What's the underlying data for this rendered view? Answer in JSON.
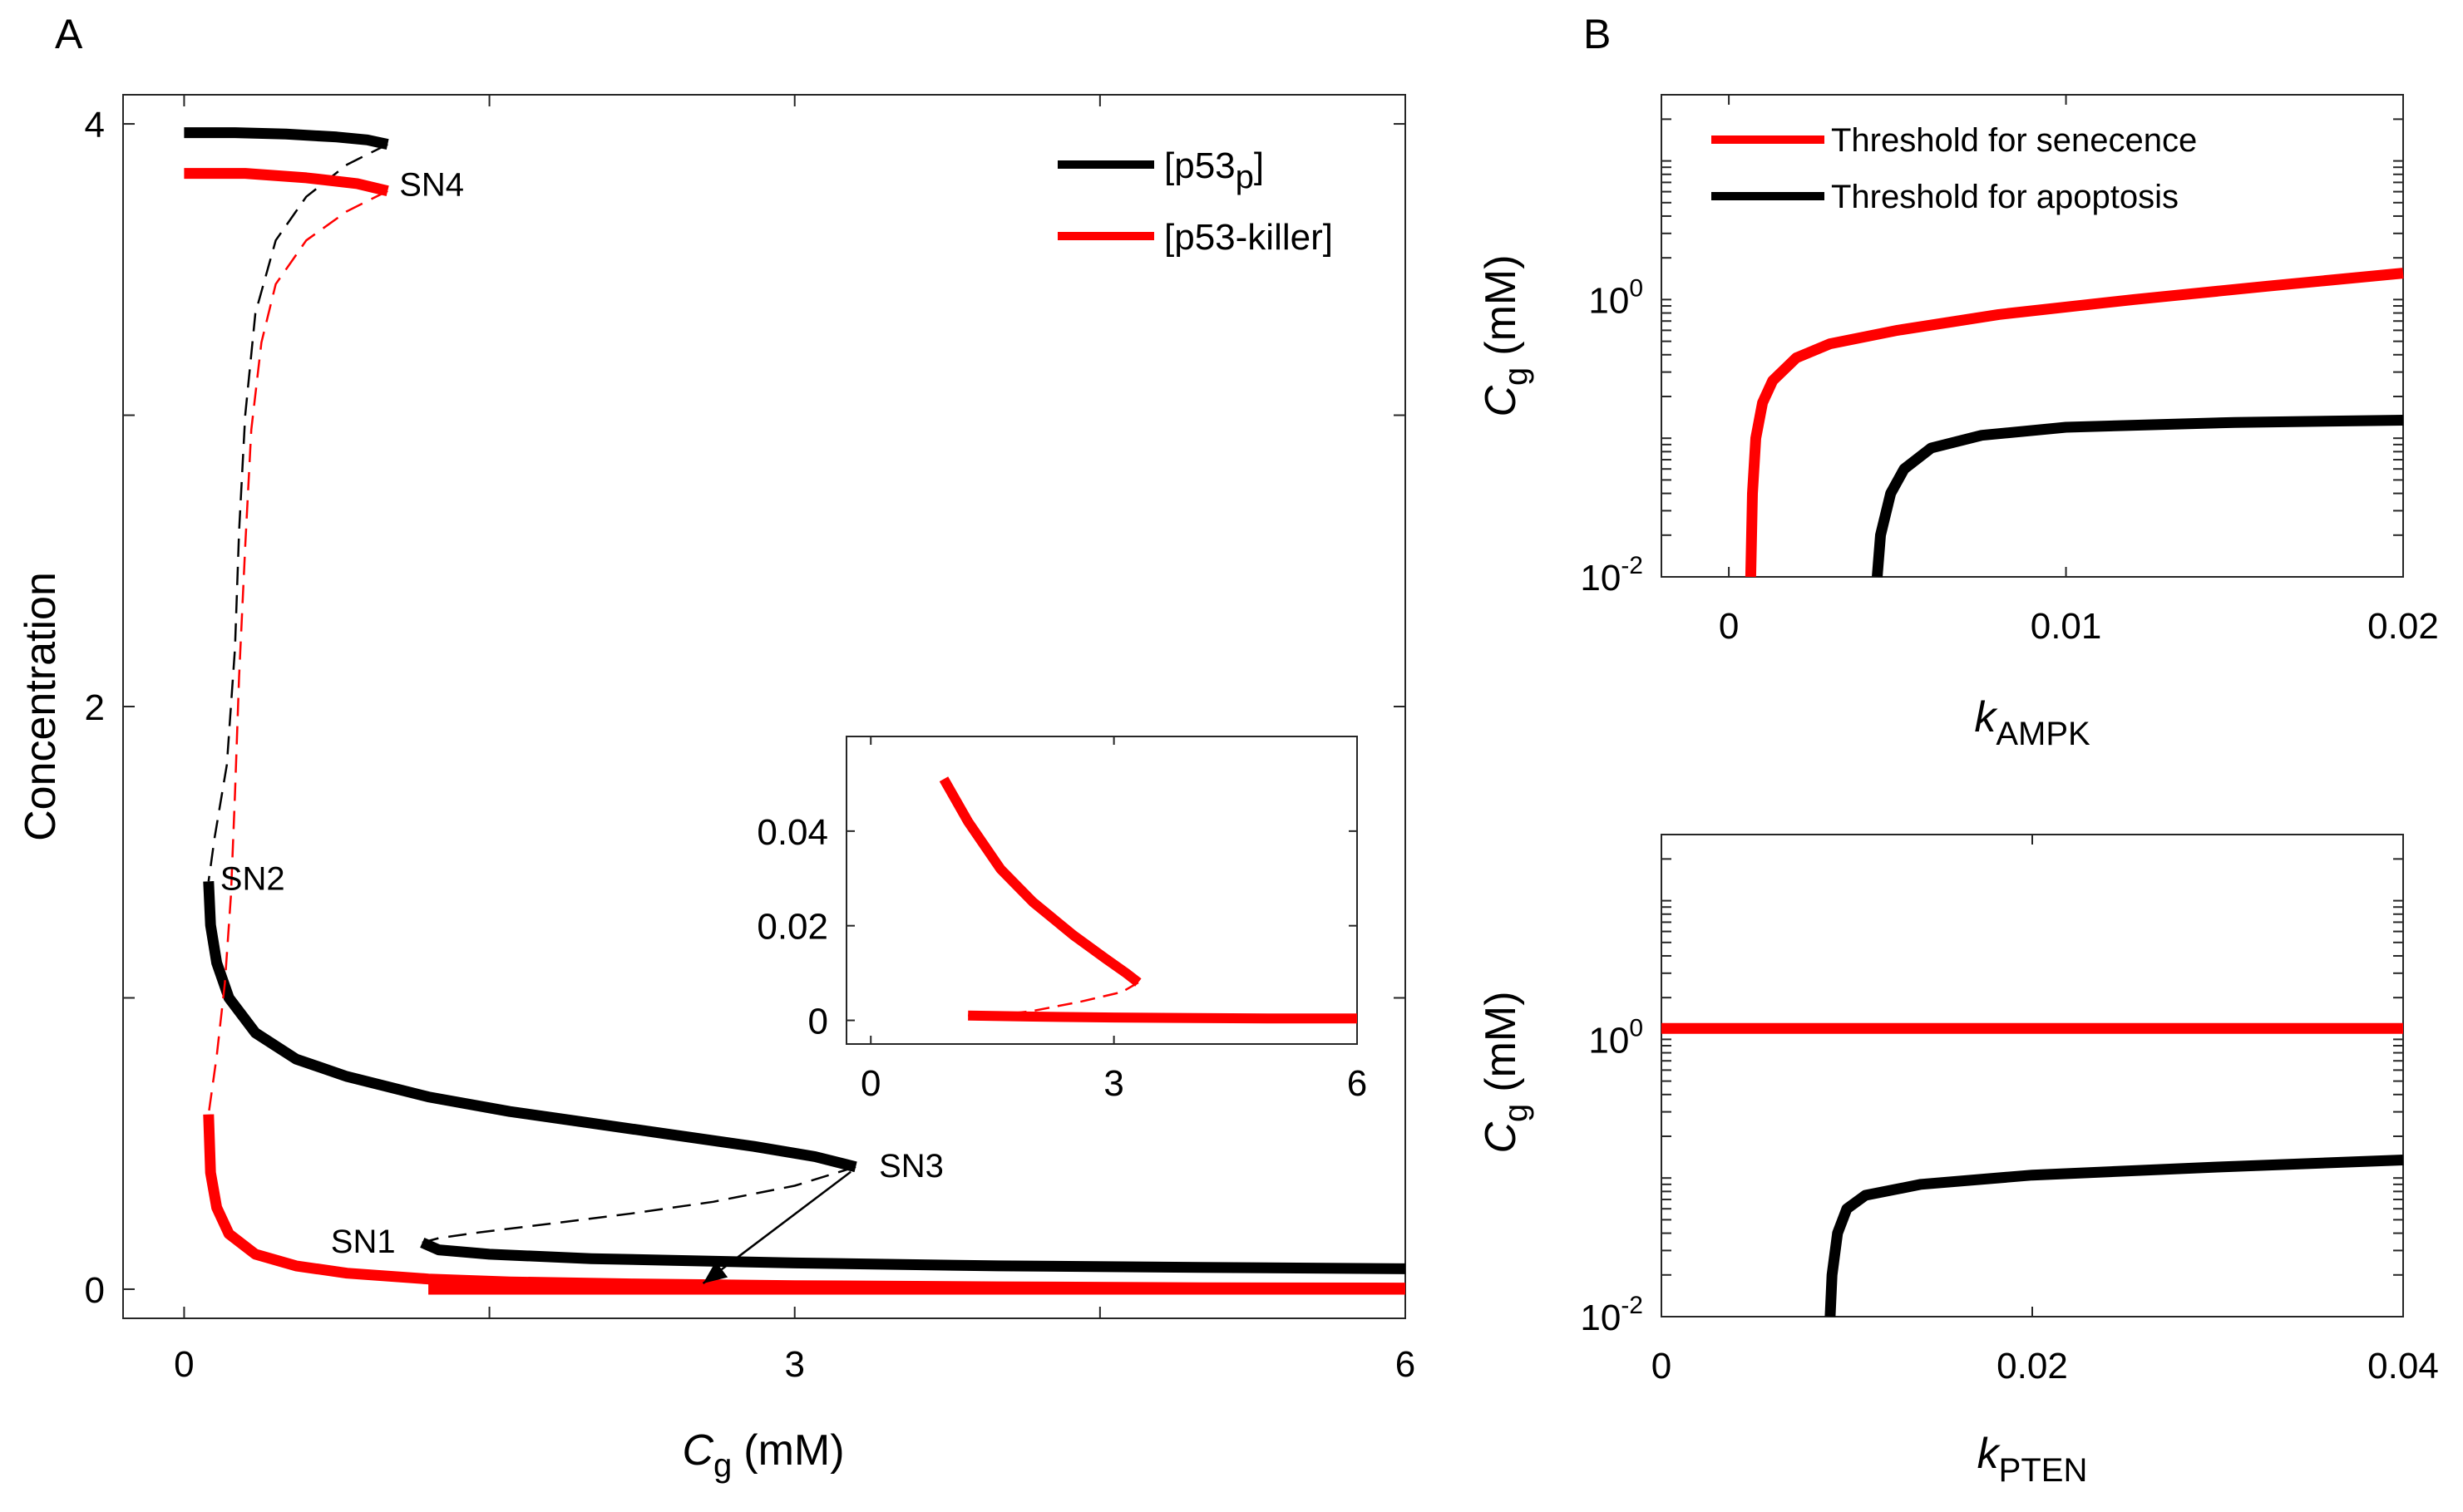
{
  "chart_data": [
    {
      "panel": "A",
      "type": "line",
      "xlabel": "C_g (mM)",
      "xlabel_main": "C",
      "xlabel_sub": "g",
      "xlabel_unit": "(mM)",
      "ylabel": "Concentration",
      "xlim": [
        -0.3,
        6
      ],
      "ylim": [
        -0.1,
        4.1
      ],
      "xticks": [
        0,
        3,
        6
      ],
      "yticks": [
        0,
        2,
        4
      ],
      "legend": {
        "placement": "top-right",
        "entries": [
          {
            "main": "[p53",
            "sub": "p",
            "tail": "]",
            "color": "#000000"
          },
          {
            "main": "[p53-killer]",
            "sub": "",
            "tail": "",
            "color": "#ff0000"
          }
        ]
      },
      "annotations": [
        {
          "text": "SN4",
          "x": 1.0,
          "y": 3.93
        },
        {
          "text": "SN2",
          "x": 0.12,
          "y": 1.4
        },
        {
          "text": "SN3",
          "x": 3.3,
          "y": 0.42
        },
        {
          "text": "SN1",
          "x": 1.17,
          "y": 0.16
        }
      ],
      "series": [
        {
          "name": "[p53_p]",
          "color": "#000000",
          "style": "solid",
          "points": [
            [
              0.0,
              3.97
            ],
            [
              0.25,
              3.97
            ],
            [
              0.5,
              3.965
            ],
            [
              0.75,
              3.955
            ],
            [
              0.9,
              3.945
            ],
            [
              1.0,
              3.93
            ]
          ]
        },
        {
          "name": "[p53_p]",
          "color": "#000000",
          "style": "dashed",
          "points": [
            [
              1.0,
              3.93
            ],
            [
              0.8,
              3.86
            ],
            [
              0.6,
              3.75
            ],
            [
              0.45,
              3.6
            ],
            [
              0.35,
              3.35
            ],
            [
              0.3,
              3.0
            ],
            [
              0.27,
              2.6
            ],
            [
              0.25,
              2.2
            ],
            [
              0.21,
              1.8
            ],
            [
              0.15,
              1.55
            ],
            [
              0.12,
              1.4
            ]
          ]
        },
        {
          "name": "[p53_p]",
          "color": "#000000",
          "style": "solid",
          "points": [
            [
              0.12,
              1.4
            ],
            [
              0.13,
              1.25
            ],
            [
              0.16,
              1.12
            ],
            [
              0.22,
              1.0
            ],
            [
              0.35,
              0.88
            ],
            [
              0.55,
              0.79
            ],
            [
              0.8,
              0.73
            ],
            [
              1.2,
              0.66
            ],
            [
              1.6,
              0.61
            ],
            [
              2.0,
              0.57
            ],
            [
              2.4,
              0.53
            ],
            [
              2.8,
              0.49
            ],
            [
              3.1,
              0.455
            ],
            [
              3.3,
              0.42
            ]
          ]
        },
        {
          "name": "[p53_p]",
          "color": "#000000",
          "style": "dashed",
          "points": [
            [
              3.3,
              0.42
            ],
            [
              3.0,
              0.355
            ],
            [
              2.6,
              0.3
            ],
            [
              2.2,
              0.26
            ],
            [
              1.8,
              0.225
            ],
            [
              1.45,
              0.195
            ],
            [
              1.25,
              0.175
            ],
            [
              1.17,
              0.16
            ]
          ]
        },
        {
          "name": "[p53_p]",
          "color": "#000000",
          "style": "solid",
          "points": [
            [
              1.17,
              0.16
            ],
            [
              1.25,
              0.135
            ],
            [
              1.5,
              0.12
            ],
            [
              2.0,
              0.105
            ],
            [
              3.0,
              0.09
            ],
            [
              4.0,
              0.08
            ],
            [
              5.0,
              0.075
            ],
            [
              6.0,
              0.07
            ]
          ]
        },
        {
          "name": "[p53-killer]",
          "color": "#ff0000",
          "style": "solid",
          "points": [
            [
              0.0,
              3.83
            ],
            [
              0.3,
              3.83
            ],
            [
              0.6,
              3.815
            ],
            [
              0.85,
              3.795
            ],
            [
              1.0,
              3.77
            ]
          ]
        },
        {
          "name": "[p53-killer]",
          "color": "#ff0000",
          "style": "dashed",
          "points": [
            [
              1.0,
              3.77
            ],
            [
              0.8,
              3.7
            ],
            [
              0.6,
              3.6
            ],
            [
              0.45,
              3.45
            ],
            [
              0.38,
              3.25
            ],
            [
              0.33,
              2.95
            ],
            [
              0.3,
              2.55
            ],
            [
              0.27,
              2.1
            ],
            [
              0.25,
              1.7
            ],
            [
              0.23,
              1.35
            ],
            [
              0.2,
              1.05
            ],
            [
              0.16,
              0.8
            ],
            [
              0.12,
              0.6
            ]
          ]
        },
        {
          "name": "[p53-killer]",
          "color": "#ff0000",
          "style": "solid",
          "points": [
            [
              0.12,
              0.6
            ],
            [
              0.13,
              0.4
            ],
            [
              0.16,
              0.28
            ],
            [
              0.22,
              0.19
            ],
            [
              0.35,
              0.12
            ],
            [
              0.55,
              0.08
            ],
            [
              0.8,
              0.055
            ],
            [
              1.2,
              0.035
            ],
            [
              1.6,
              0.025
            ],
            [
              2.2,
              0.018
            ],
            [
              3.0,
              0.012
            ],
            [
              4.0,
              0.008
            ],
            [
              5.0,
              0.005
            ],
            [
              6.0,
              0.004
            ]
          ]
        },
        {
          "name": "[p53-killer]",
          "color": "#ff0000",
          "style": "solid",
          "points": [
            [
              1.2,
              0.0
            ],
            [
              6.0,
              0.0
            ]
          ]
        }
      ],
      "inset": {
        "xlim": [
          -0.3,
          6
        ],
        "ylim": [
          -0.005,
          0.06
        ],
        "xticks": [
          0,
          3,
          6
        ],
        "yticks": [
          0,
          0.02,
          0.04
        ],
        "ytick_labels": [
          "0",
          "0.02",
          "0.04"
        ],
        "series": [
          {
            "name": "[p53-killer]",
            "color": "#ff0000",
            "style": "solid",
            "points": [
              [
                0.9,
                0.051
              ],
              [
                1.2,
                0.042
              ],
              [
                1.6,
                0.032
              ],
              [
                2.0,
                0.025
              ],
              [
                2.5,
                0.018
              ],
              [
                2.9,
                0.013
              ],
              [
                3.15,
                0.01
              ],
              [
                3.3,
                0.008
              ]
            ]
          },
          {
            "name": "[p53-killer]",
            "color": "#ff0000",
            "style": "dashed",
            "points": [
              [
                3.3,
                0.008
              ],
              [
                3.1,
                0.006
              ],
              [
                2.6,
                0.004
              ],
              [
                2.0,
                0.002
              ],
              [
                1.6,
                0.0012
              ],
              [
                1.2,
                0.001
              ]
            ]
          },
          {
            "name": "[p53-killer]",
            "color": "#ff0000",
            "style": "solid",
            "points": [
              [
                1.2,
                0.001
              ],
              [
                2.0,
                0.0008
              ],
              [
                3.0,
                0.0006
              ],
              [
                4.0,
                0.0005
              ],
              [
                5.0,
                0.0004
              ],
              [
                6.0,
                0.0004
              ]
            ]
          }
        ],
        "arrow": {
          "from": [
            3.3,
            0.42
          ],
          "to": [
            2.55,
            0.02
          ]
        }
      }
    },
    {
      "panel": "B-top",
      "type": "line",
      "xlabel": "k_AMPK",
      "xlabel_main": "k",
      "xlabel_sub": "AMPK",
      "ylabel": "C_g (mM)",
      "ylabel_main": "C",
      "ylabel_sub": "g",
      "ylabel_unit": "(mM)",
      "yscale": "log",
      "xlim": [
        -0.002,
        0.02
      ],
      "ylim": [
        0.01,
        30
      ],
      "xticks": [
        0,
        0.01,
        0.02
      ],
      "xtick_labels": [
        "0",
        "0.01",
        "0.02"
      ],
      "yticks": [
        0.01,
        1
      ],
      "ytick_labels": [
        {
          "base": "10",
          "exp": "-2"
        },
        {
          "base": "10",
          "exp": "0"
        }
      ],
      "legend": {
        "placement": "top-left",
        "entries": [
          {
            "text": "Threshold for senecence",
            "color": "#ff0000"
          },
          {
            "text": "Threshold for apoptosis",
            "color": "#000000"
          }
        ]
      },
      "series": [
        {
          "name": "Threshold for senecence",
          "color": "#ff0000",
          "points": [
            [
              0.00065,
              0.01
            ],
            [
              0.0007,
              0.04
            ],
            [
              0.0008,
              0.1
            ],
            [
              0.001,
              0.18
            ],
            [
              0.0013,
              0.26
            ],
            [
              0.002,
              0.38
            ],
            [
              0.003,
              0.48
            ],
            [
              0.005,
              0.6
            ],
            [
              0.008,
              0.78
            ],
            [
              0.012,
              1.0
            ],
            [
              0.016,
              1.25
            ],
            [
              0.02,
              1.55
            ]
          ]
        },
        {
          "name": "Threshold for apoptosis",
          "color": "#000000",
          "points": [
            [
              0.0044,
              0.01
            ],
            [
              0.0045,
              0.02
            ],
            [
              0.0048,
              0.04
            ],
            [
              0.0052,
              0.06
            ],
            [
              0.006,
              0.085
            ],
            [
              0.0075,
              0.105
            ],
            [
              0.01,
              0.12
            ],
            [
              0.015,
              0.13
            ],
            [
              0.02,
              0.135
            ]
          ]
        }
      ]
    },
    {
      "panel": "B-bottom",
      "type": "line",
      "xlabel": "k_PTEN",
      "xlabel_main": "k",
      "xlabel_sub": "PTEN",
      "ylabel": "C_g (mM)",
      "ylabel_main": "C",
      "ylabel_sub": "g",
      "ylabel_unit": "(mM)",
      "yscale": "log",
      "xlim": [
        0,
        0.04
      ],
      "ylim": [
        0.01,
        30
      ],
      "xticks": [
        0,
        0.02,
        0.04
      ],
      "xtick_labels": [
        "0",
        "0.02",
        "0.04"
      ],
      "yticks": [
        0.01,
        1
      ],
      "ytick_labels": [
        {
          "base": "10",
          "exp": "-2"
        },
        {
          "base": "10",
          "exp": "0"
        }
      ],
      "series": [
        {
          "name": "Threshold for senecence",
          "color": "#ff0000",
          "points": [
            [
              0.0,
              1.2
            ],
            [
              0.04,
              1.2
            ]
          ]
        },
        {
          "name": "Threshold for apoptosis",
          "color": "#000000",
          "points": [
            [
              0.0091,
              0.01
            ],
            [
              0.0092,
              0.02
            ],
            [
              0.0095,
              0.04
            ],
            [
              0.01,
              0.06
            ],
            [
              0.011,
              0.075
            ],
            [
              0.014,
              0.09
            ],
            [
              0.02,
              0.105
            ],
            [
              0.03,
              0.12
            ],
            [
              0.04,
              0.135
            ]
          ]
        }
      ]
    }
  ]
}
